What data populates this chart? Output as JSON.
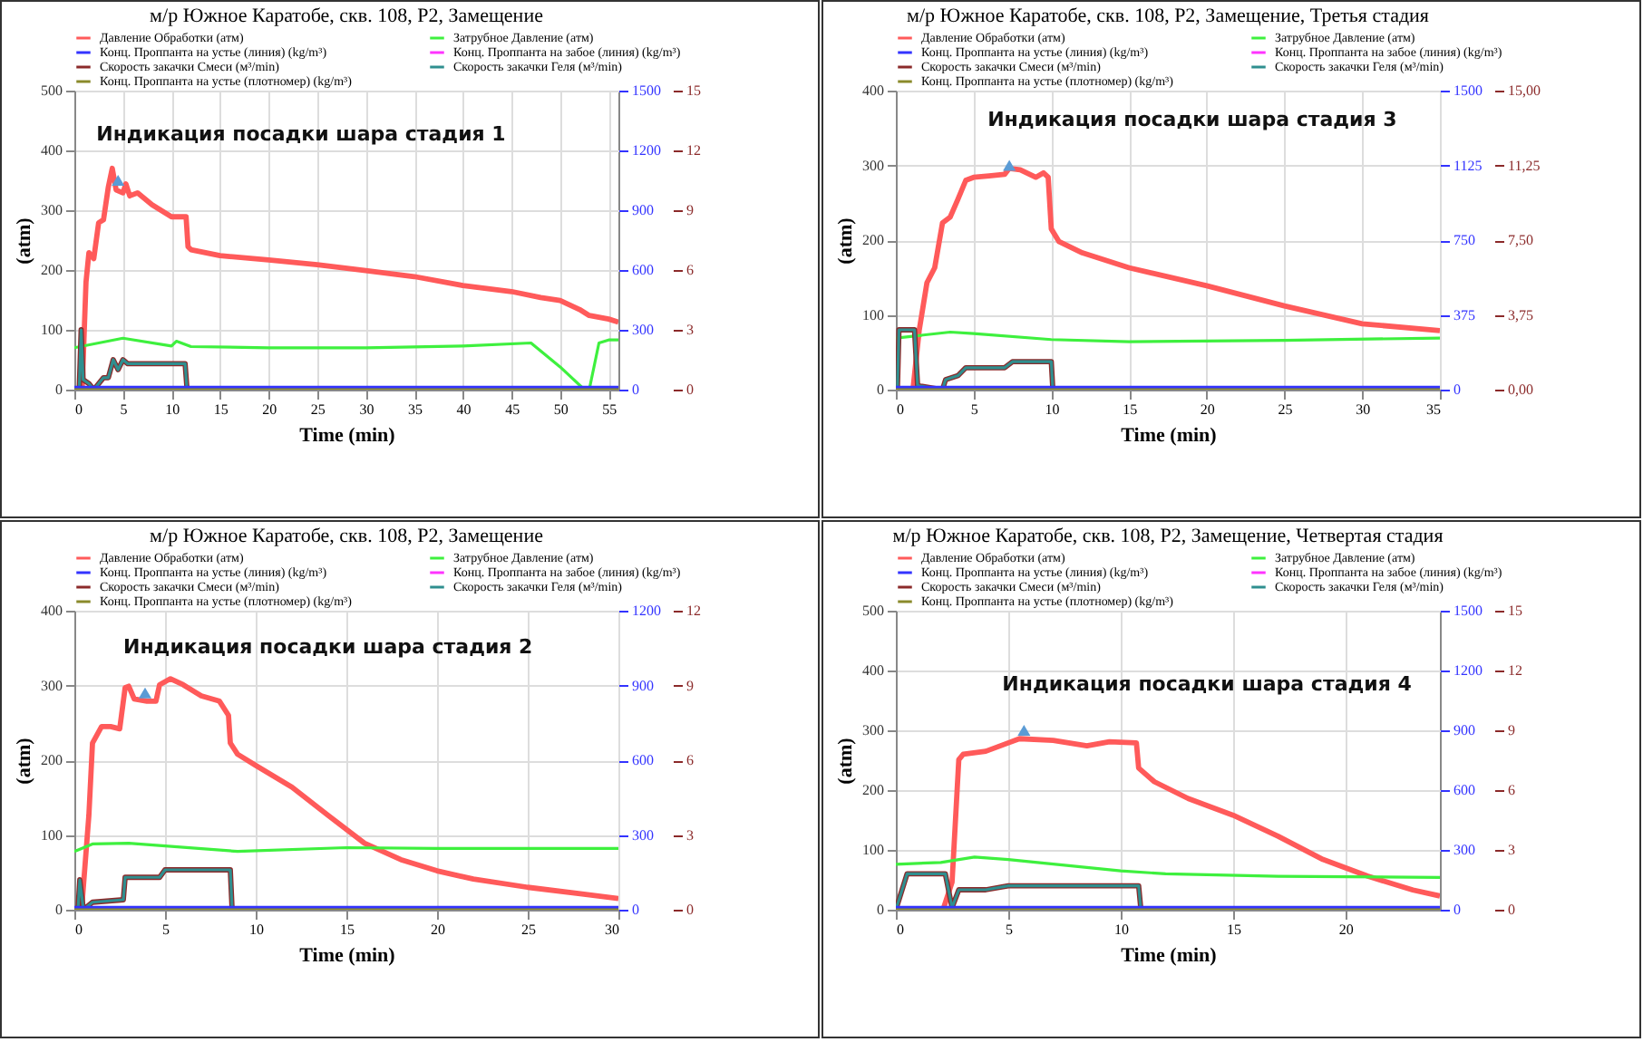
{
  "chart_data": [
    {
      "type": "line",
      "title": "м/р Южное Каратобе, скв. 108, Р2, Замещение",
      "xlabel": "Time (min)",
      "ylabel": "(atm)",
      "grid": true,
      "legend": "top",
      "xlim": [
        0,
        56
      ],
      "xticks": [
        0,
        5,
        10,
        15,
        20,
        25,
        30,
        35,
        40,
        45,
        50,
        55
      ],
      "ylim": [
        0,
        500
      ],
      "yticks": [
        0,
        100,
        200,
        300,
        400,
        500
      ],
      "y2lim": [
        0,
        15
      ],
      "y2ticks": [
        0,
        3,
        6,
        9,
        12,
        15
      ],
      "y3lim": [
        0,
        1500
      ],
      "y3ticks": [
        0,
        300,
        600,
        900,
        1200,
        1500
      ],
      "annotations": [
        {
          "text": "Индикация посадки шара стадия 1",
          "x": 4.5,
          "y": 350
        }
      ],
      "series": [
        {
          "name": "Давление Обработки (атм)",
          "color": "#ff5a5a",
          "axis": "y",
          "x": [
            0.8,
            1.2,
            1.5,
            2,
            2.5,
            3,
            3.5,
            3.9,
            4.3,
            5,
            5.3,
            5.7,
            6.5,
            8,
            10,
            11.5,
            11.7,
            12,
            15,
            20,
            25,
            30,
            35,
            40,
            45,
            48,
            50,
            52,
            53,
            55,
            56
          ],
          "values": [
            0,
            180,
            229,
            219,
            279,
            284,
            339,
            370,
            334,
            329,
            344,
            324,
            329,
            309,
            289,
            289,
            239,
            234,
            224,
            217,
            209,
            199,
            189,
            174,
            164,
            154,
            149,
            134,
            124,
            118,
            113
          ]
        },
        {
          "name": "Затрубное Давление (атм)",
          "color": "#3ef03e",
          "axis": "y",
          "x": [
            0,
            5,
            10,
            10.5,
            12,
            20,
            30,
            40,
            47,
            50,
            52.5,
            53,
            54,
            55,
            56
          ],
          "values": [
            70,
            86,
            73,
            81,
            72,
            70,
            70,
            73,
            78,
            38,
            0,
            0,
            78,
            83,
            83
          ]
        },
        {
          "name": "Конц. Проппанта на устье (линия) (kg/m³)",
          "color": "#3333ff",
          "axis": "y3",
          "x": [
            0,
            56
          ],
          "values": [
            0,
            0
          ]
        },
        {
          "name": "Конц. Проппанта на забое (линия) (kg/m³)",
          "color": "#ff33ff",
          "axis": "y3"
        },
        {
          "name": "Скорость закачки Смеси (м³/min)",
          "color": "#8b2a2a",
          "axis": "y2",
          "x": [
            0.5,
            0.7,
            0.9,
            1.5,
            2,
            3,
            3.5,
            4,
            4.5,
            5,
            5.5,
            11.4,
            11.6
          ],
          "values": [
            0,
            3,
            0.5,
            0.3,
            0,
            0.6,
            0.6,
            1.5,
            1,
            1.5,
            1.3,
            1.3,
            0
          ]
        },
        {
          "name": "Скорость закачки Геля (м³/min)",
          "color": "#2f8f8f",
          "axis": "y2",
          "x": [
            0.5,
            0.7,
            0.9,
            1.5,
            2,
            3,
            3.5,
            4,
            4.5,
            5,
            5.5,
            11.4,
            11.6
          ],
          "values": [
            0,
            3,
            0.5,
            0.3,
            0,
            0.6,
            0.6,
            1.5,
            1,
            1.5,
            1.3,
            1.3,
            0
          ]
        },
        {
          "name": "Конц. Проппанта на устье (плотномер) (kg/m³)",
          "color": "#8a8a2a",
          "axis": "y3",
          "x": [
            0,
            56
          ],
          "values": [
            0,
            0
          ]
        }
      ]
    },
    {
      "type": "line",
      "title": "м/р Южное Каратобе, скв. 108, Р2, Замещение, Третья стадия",
      "xlabel": "Time (min)",
      "ylabel": "(atm)",
      "grid": true,
      "legend": "top",
      "xlim": [
        0,
        35
      ],
      "xticks": [
        0,
        5,
        10,
        15,
        20,
        25,
        30,
        35
      ],
      "ylim": [
        0,
        400
      ],
      "yticks": [
        0,
        100,
        200,
        300,
        400
      ],
      "y2lim": [
        0,
        15
      ],
      "y2ticks": [
        {
          "value": 0,
          "label": "0,00"
        },
        {
          "value": 3.75,
          "label": "3,75"
        },
        {
          "value": 7.5,
          "label": "7,50"
        },
        {
          "value": 11.25,
          "label": "11,25"
        },
        {
          "value": 15,
          "label": "15,00"
        }
      ],
      "y3lim": [
        0,
        1500
      ],
      "y3ticks": [
        0,
        375,
        750,
        1125,
        1500
      ],
      "annotations": [
        {
          "text": "Индикация посадки шара стадия 3",
          "x": 7.3,
          "y": 300
        }
      ],
      "series": [
        {
          "name": "Давление Обработки (атм)",
          "color": "#ff5a5a",
          "axis": "y",
          "x": [
            1.1,
            1.5,
            2,
            2.5,
            3,
            3.5,
            4,
            4.5,
            5,
            6,
            7,
            7.3,
            8,
            9,
            9.5,
            9.8,
            10,
            10.5,
            12,
            15,
            20,
            25,
            30,
            35
          ],
          "values": [
            0,
            79,
            143,
            163,
            223,
            231,
            255,
            280,
            284,
            286,
            288,
            296,
            294,
            284,
            290,
            284,
            215,
            198,
            183,
            163,
            139,
            112,
            88,
            79
          ]
        },
        {
          "name": "Затрубное Давление (атм)",
          "color": "#3ef03e",
          "axis": "y",
          "x": [
            0,
            3.5,
            5,
            10,
            15,
            25,
            35
          ],
          "values": [
            69,
            77,
            75,
            67,
            64,
            66,
            69
          ]
        },
        {
          "name": "Конц. Проппанта на устье (линия) (kg/m³)",
          "color": "#3333ff",
          "axis": "y3",
          "x": [
            0,
            35
          ],
          "values": [
            0,
            0
          ]
        },
        {
          "name": "Конц. Проппанта на забое (линия) (kg/m³)",
          "color": "#ff33ff",
          "axis": "y3"
        },
        {
          "name": "Скорость закачки Смеси (м³/min)",
          "color": "#8b2a2a",
          "axis": "y2",
          "x": [
            0.1,
            0.2,
            1.2,
            1.4,
            3,
            3.2,
            4,
            4.5,
            7,
            7.5,
            10,
            10.1
          ],
          "values": [
            0,
            3,
            3,
            0.2,
            0,
            0.5,
            0.7,
            1.1,
            1.1,
            1.4,
            1.4,
            0
          ]
        },
        {
          "name": "Скорость закачки Геля (м³/min)",
          "color": "#2f8f8f",
          "axis": "y2",
          "x": [
            0.1,
            0.2,
            1.2,
            1.4,
            3,
            3.2,
            4,
            4.5,
            7,
            7.5,
            10,
            10.1
          ],
          "values": [
            0,
            3,
            3,
            0.2,
            0,
            0.5,
            0.7,
            1.1,
            1.1,
            1.4,
            1.4,
            0
          ]
        },
        {
          "name": "Конц. Проппанта на устье (плотномер) (kg/m³)",
          "color": "#8a8a2a",
          "axis": "y3",
          "x": [
            0,
            35
          ],
          "values": [
            0,
            0
          ]
        }
      ]
    },
    {
      "type": "line",
      "title": "м/р Южное Каратобе, скв. 108, Р2, Замещение",
      "xlabel": "Time (min)",
      "ylabel": "(atm)",
      "grid": true,
      "legend": "top",
      "xlim": [
        0,
        30
      ],
      "xticks": [
        0,
        5,
        10,
        15,
        20,
        25,
        30
      ],
      "ylim": [
        0,
        400
      ],
      "yticks": [
        0,
        100,
        200,
        300,
        400
      ],
      "y2lim": [
        0,
        12
      ],
      "y2ticks": [
        0,
        3,
        6,
        9,
        12
      ],
      "y3lim": [
        0,
        1200
      ],
      "y3ticks": [
        0,
        300,
        600,
        900,
        1200
      ],
      "annotations": [
        {
          "text": "Индикация посадки шара стадия 2",
          "x": 3.9,
          "y": 290
        }
      ],
      "series": [
        {
          "name": "Давление Обработки (атм)",
          "color": "#ff5a5a",
          "axis": "y",
          "x": [
            0.4,
            0.8,
            1,
            1.5,
            2,
            2.5,
            2.8,
            3,
            3.3,
            4,
            4.5,
            4.7,
            5.3,
            6,
            7,
            8,
            8.5,
            8.6,
            9,
            10,
            12,
            14,
            16,
            18,
            20,
            22,
            25,
            28,
            30
          ],
          "values": [
            0,
            126,
            223,
            245,
            245,
            242,
            297,
            299,
            282,
            279,
            279,
            301,
            309,
            301,
            286,
            279,
            260,
            223,
            208,
            193,
            164,
            126,
            89,
            67,
            52,
            41,
            30,
            21,
            15
          ]
        },
        {
          "name": "Затрубное Давление (атм)",
          "color": "#3ef03e",
          "axis": "y",
          "x": [
            0,
            1,
            3,
            9,
            15,
            20,
            30
          ],
          "values": [
            78,
            88,
            89,
            78,
            83,
            82,
            82
          ]
        },
        {
          "name": "Конц. Проппанта на устье (линия) (kg/m³)",
          "color": "#3333ff",
          "axis": "y3",
          "x": [
            0,
            30
          ],
          "values": [
            0,
            0
          ]
        },
        {
          "name": "Конц. Проппанта на забое (линия) (kg/m³)",
          "color": "#ff33ff",
          "axis": "y3"
        },
        {
          "name": "Скорость закачки Смеси (м³/min)",
          "color": "#8b2a2a",
          "axis": "y2",
          "x": [
            0.2,
            0.3,
            0.5,
            1,
            2.7,
            2.8,
            4.7,
            5,
            8.6,
            8.7
          ],
          "values": [
            0,
            1.2,
            0,
            0.3,
            0.4,
            1.3,
            1.3,
            1.6,
            1.6,
            0
          ]
        },
        {
          "name": "Скорость закачки Геля (м³/min)",
          "color": "#2f8f8f",
          "axis": "y2",
          "x": [
            0.2,
            0.3,
            0.5,
            1,
            2.7,
            2.8,
            4.7,
            5,
            8.6,
            8.7
          ],
          "values": [
            0,
            1.2,
            0,
            0.3,
            0.4,
            1.3,
            1.3,
            1.6,
            1.6,
            0
          ]
        },
        {
          "name": "Конц. Проппанта на устье (плотномер) (kg/m³)",
          "color": "#8a8a2a",
          "axis": "y3",
          "x": [
            0,
            30
          ],
          "values": [
            0,
            0
          ]
        }
      ]
    },
    {
      "type": "line",
      "title": "м/р Южное Каратобе, скв. 108, Р2, Замещение, Четвертая стадия",
      "xlabel": "Time (min)",
      "ylabel": "(atm)",
      "grid": true,
      "legend": "top",
      "xlim": [
        0,
        24.2
      ],
      "xticks": [
        0,
        5,
        10,
        15,
        20
      ],
      "ylim": [
        0,
        500
      ],
      "yticks": [
        0,
        100,
        200,
        300,
        400,
        500
      ],
      "y2lim": [
        0,
        15
      ],
      "y2ticks": [
        0,
        3,
        6,
        9,
        12,
        15
      ],
      "y3lim": [
        0,
        1500
      ],
      "y3ticks": [
        0,
        300,
        600,
        900,
        1200,
        1500
      ],
      "annotations": [
        {
          "text": "Индикация посадки шара стадия 4",
          "x": 5.7,
          "y": 300
        }
      ],
      "series": [
        {
          "name": "Давление Обработки (атм)",
          "color": "#ff5a5a",
          "axis": "y",
          "x": [
            2.1,
            2.5,
            2.8,
            3,
            4,
            5,
            5.5,
            7,
            8.5,
            9.5,
            10.7,
            10.8,
            11.5,
            13,
            15,
            17,
            19,
            21,
            23,
            24.2
          ],
          "values": [
            0,
            46,
            251,
            260,
            265,
            279,
            286,
            283,
            274,
            281,
            279,
            237,
            214,
            186,
            158,
            123,
            84,
            56,
            33,
            23
          ]
        },
        {
          "name": "Затрубное Давление (атм)",
          "color": "#3ef03e",
          "axis": "y",
          "x": [
            0,
            2,
            3.5,
            5,
            10,
            12,
            17,
            24.2
          ],
          "values": [
            76,
            79,
            88,
            84,
            65,
            60,
            56,
            54
          ]
        },
        {
          "name": "Конц. Проппанта на устье (линия) (kg/m³)",
          "color": "#3333ff",
          "axis": "y3",
          "x": [
            0,
            24.2
          ],
          "values": [
            0,
            0
          ]
        },
        {
          "name": "Конц. Проппанта на забое (линия) (kg/m³)",
          "color": "#ff33ff",
          "axis": "y3"
        },
        {
          "name": "Скорость закачки Смеси (м³/min)",
          "color": "#8b2a2a",
          "axis": "y2",
          "x": [
            0,
            0.5,
            2.2,
            2.5,
            2.8,
            4,
            5,
            10.8,
            10.9
          ],
          "values": [
            0,
            1.8,
            1.8,
            0.1,
            1,
            1,
            1.2,
            1.2,
            0
          ]
        },
        {
          "name": "Скорость закачки Геля (м³/min)",
          "color": "#2f8f8f",
          "axis": "y2",
          "x": [
            0,
            0.5,
            2.2,
            2.5,
            2.8,
            4,
            5,
            10.8,
            10.9
          ],
          "values": [
            0,
            1.8,
            1.8,
            0.1,
            1,
            1,
            1.2,
            1.2,
            0
          ]
        },
        {
          "name": "Конц. Проппанта на устье (плотномер) (kg/m³)",
          "color": "#8a8a2a",
          "axis": "y3",
          "x": [
            0,
            24.2
          ],
          "values": [
            0,
            0
          ]
        }
      ]
    }
  ]
}
